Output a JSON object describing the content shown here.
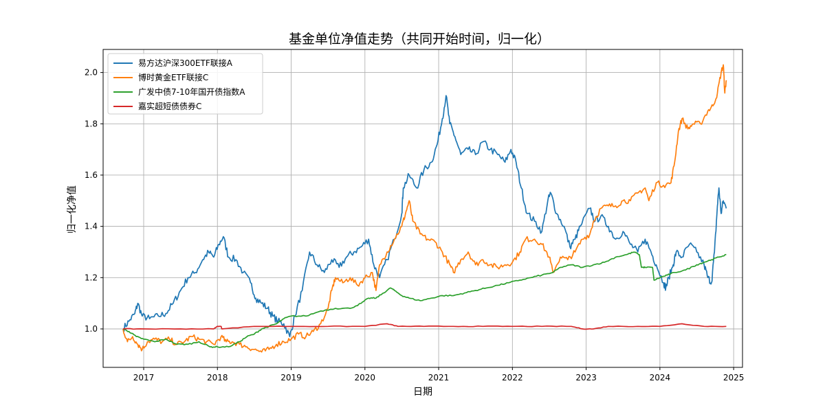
{
  "chart_data": {
    "type": "line",
    "title": "基金单位净值走势（共同开始时间，归一化）",
    "xlabel": "日期",
    "ylabel": "归一化净值",
    "xlim": [
      2016.45,
      2025.12
    ],
    "ylim": [
      0.85,
      2.09
    ],
    "x_ticks": [
      {
        "value": 2017,
        "label": "2017"
      },
      {
        "value": 2018,
        "label": "2018"
      },
      {
        "value": 2019,
        "label": "2019"
      },
      {
        "value": 2020,
        "label": "2020"
      },
      {
        "value": 2021,
        "label": "2021"
      },
      {
        "value": 2022,
        "label": "2022"
      },
      {
        "value": 2023,
        "label": "2023"
      },
      {
        "value": 2024,
        "label": "2024"
      },
      {
        "value": 2025,
        "label": "2025"
      }
    ],
    "y_ticks": [
      {
        "value": 1.0,
        "label": "1.0"
      },
      {
        "value": 1.2,
        "label": "1.2"
      },
      {
        "value": 1.4,
        "label": "1.4"
      },
      {
        "value": 1.6,
        "label": "1.6"
      },
      {
        "value": 1.8,
        "label": "1.8"
      },
      {
        "value": 2.0,
        "label": "2.0"
      }
    ],
    "grid": true,
    "legend_position": "top-left",
    "series": [
      {
        "name": "易方达沪深300ETF联接A",
        "color": "#1f77b4",
        "points": [
          [
            2016.72,
            1.0
          ],
          [
            2016.8,
            1.03
          ],
          [
            2016.88,
            1.06
          ],
          [
            2016.92,
            1.1
          ],
          [
            2016.98,
            1.05
          ],
          [
            2017.08,
            1.04
          ],
          [
            2017.2,
            1.05
          ],
          [
            2017.3,
            1.06
          ],
          [
            2017.4,
            1.1
          ],
          [
            2017.5,
            1.15
          ],
          [
            2017.6,
            1.2
          ],
          [
            2017.7,
            1.22
          ],
          [
            2017.8,
            1.27
          ],
          [
            2017.88,
            1.3
          ],
          [
            2017.95,
            1.28
          ],
          [
            2018.02,
            1.33
          ],
          [
            2018.08,
            1.36
          ],
          [
            2018.15,
            1.28
          ],
          [
            2018.25,
            1.27
          ],
          [
            2018.35,
            1.22
          ],
          [
            2018.45,
            1.18
          ],
          [
            2018.52,
            1.12
          ],
          [
            2018.6,
            1.1
          ],
          [
            2018.68,
            1.08
          ],
          [
            2018.75,
            1.05
          ],
          [
            2018.82,
            1.03
          ],
          [
            2018.9,
            1.02
          ],
          [
            2018.98,
            0.97
          ],
          [
            2019.05,
            1.05
          ],
          [
            2019.15,
            1.15
          ],
          [
            2019.25,
            1.3
          ],
          [
            2019.35,
            1.25
          ],
          [
            2019.45,
            1.22
          ],
          [
            2019.55,
            1.27
          ],
          [
            2019.65,
            1.24
          ],
          [
            2019.75,
            1.28
          ],
          [
            2019.85,
            1.3
          ],
          [
            2019.95,
            1.32
          ],
          [
            2020.05,
            1.35
          ],
          [
            2020.12,
            1.25
          ],
          [
            2020.2,
            1.2
          ],
          [
            2020.3,
            1.27
          ],
          [
            2020.4,
            1.35
          ],
          [
            2020.5,
            1.45
          ],
          [
            2020.52,
            1.55
          ],
          [
            2020.6,
            1.6
          ],
          [
            2020.7,
            1.55
          ],
          [
            2020.8,
            1.62
          ],
          [
            2020.9,
            1.65
          ],
          [
            2020.98,
            1.72
          ],
          [
            2021.05,
            1.82
          ],
          [
            2021.1,
            1.91
          ],
          [
            2021.15,
            1.8
          ],
          [
            2021.22,
            1.75
          ],
          [
            2021.3,
            1.68
          ],
          [
            2021.4,
            1.7
          ],
          [
            2021.5,
            1.68
          ],
          [
            2021.6,
            1.73
          ],
          [
            2021.7,
            1.7
          ],
          [
            2021.8,
            1.68
          ],
          [
            2021.9,
            1.65
          ],
          [
            2021.98,
            1.7
          ],
          [
            2022.05,
            1.65
          ],
          [
            2022.12,
            1.55
          ],
          [
            2022.2,
            1.45
          ],
          [
            2022.3,
            1.42
          ],
          [
            2022.4,
            1.38
          ],
          [
            2022.48,
            1.5
          ],
          [
            2022.52,
            1.53
          ],
          [
            2022.6,
            1.45
          ],
          [
            2022.7,
            1.4
          ],
          [
            2022.78,
            1.32
          ],
          [
            2022.85,
            1.35
          ],
          [
            2022.92,
            1.4
          ],
          [
            2023.05,
            1.47
          ],
          [
            2023.12,
            1.42
          ],
          [
            2023.2,
            1.44
          ],
          [
            2023.3,
            1.4
          ],
          [
            2023.4,
            1.35
          ],
          [
            2023.5,
            1.38
          ],
          [
            2023.6,
            1.33
          ],
          [
            2023.7,
            1.3
          ],
          [
            2023.8,
            1.35
          ],
          [
            2023.88,
            1.3
          ],
          [
            2023.95,
            1.25
          ],
          [
            2024.05,
            1.18
          ],
          [
            2024.08,
            1.16
          ],
          [
            2024.12,
            1.2
          ],
          [
            2024.18,
            1.25
          ],
          [
            2024.22,
            1.3
          ],
          [
            2024.3,
            1.28
          ],
          [
            2024.4,
            1.33
          ],
          [
            2024.5,
            1.3
          ],
          [
            2024.6,
            1.25
          ],
          [
            2024.65,
            1.2
          ],
          [
            2024.7,
            1.18
          ],
          [
            2024.74,
            1.3
          ],
          [
            2024.78,
            1.48
          ],
          [
            2024.8,
            1.55
          ],
          [
            2024.83,
            1.45
          ],
          [
            2024.86,
            1.5
          ],
          [
            2024.9,
            1.47
          ]
        ]
      },
      {
        "name": "博时黄金ETF联接C",
        "color": "#ff7f0e",
        "points": [
          [
            2016.72,
            1.0
          ],
          [
            2016.78,
            0.95
          ],
          [
            2016.85,
            0.97
          ],
          [
            2016.92,
            0.94
          ],
          [
            2016.98,
            0.92
          ],
          [
            2017.05,
            0.95
          ],
          [
            2017.15,
            0.96
          ],
          [
            2017.25,
            0.95
          ],
          [
            2017.35,
            0.96
          ],
          [
            2017.45,
            0.94
          ],
          [
            2017.55,
            0.95
          ],
          [
            2017.65,
            0.97
          ],
          [
            2017.75,
            0.96
          ],
          [
            2017.85,
            0.95
          ],
          [
            2017.95,
            0.94
          ],
          [
            2018.05,
            0.97
          ],
          [
            2018.12,
            0.95
          ],
          [
            2018.2,
            0.95
          ],
          [
            2018.3,
            0.94
          ],
          [
            2018.4,
            0.93
          ],
          [
            2018.5,
            0.92
          ],
          [
            2018.6,
            0.91
          ],
          [
            2018.7,
            0.92
          ],
          [
            2018.8,
            0.94
          ],
          [
            2018.9,
            0.95
          ],
          [
            2019.0,
            0.96
          ],
          [
            2019.1,
            0.98
          ],
          [
            2019.2,
            0.97
          ],
          [
            2019.3,
            0.99
          ],
          [
            2019.4,
            1.02
          ],
          [
            2019.5,
            1.08
          ],
          [
            2019.55,
            1.15
          ],
          [
            2019.6,
            1.2
          ],
          [
            2019.7,
            1.18
          ],
          [
            2019.8,
            1.2
          ],
          [
            2019.9,
            1.17
          ],
          [
            2020.0,
            1.2
          ],
          [
            2020.1,
            1.22
          ],
          [
            2020.15,
            1.15
          ],
          [
            2020.2,
            1.25
          ],
          [
            2020.3,
            1.3
          ],
          [
            2020.4,
            1.35
          ],
          [
            2020.5,
            1.4
          ],
          [
            2020.55,
            1.45
          ],
          [
            2020.6,
            1.5
          ],
          [
            2020.65,
            1.42
          ],
          [
            2020.75,
            1.37
          ],
          [
            2020.85,
            1.35
          ],
          [
            2020.95,
            1.34
          ],
          [
            2021.05,
            1.3
          ],
          [
            2021.15,
            1.25
          ],
          [
            2021.2,
            1.22
          ],
          [
            2021.3,
            1.27
          ],
          [
            2021.4,
            1.3
          ],
          [
            2021.5,
            1.25
          ],
          [
            2021.6,
            1.27
          ],
          [
            2021.7,
            1.25
          ],
          [
            2021.8,
            1.24
          ],
          [
            2021.9,
            1.25
          ],
          [
            2022.0,
            1.26
          ],
          [
            2022.1,
            1.3
          ],
          [
            2022.18,
            1.35
          ],
          [
            2022.3,
            1.35
          ],
          [
            2022.4,
            1.33
          ],
          [
            2022.5,
            1.28
          ],
          [
            2022.55,
            1.22
          ],
          [
            2022.65,
            1.28
          ],
          [
            2022.75,
            1.27
          ],
          [
            2022.85,
            1.3
          ],
          [
            2022.95,
            1.35
          ],
          [
            2023.05,
            1.37
          ],
          [
            2023.1,
            1.42
          ],
          [
            2023.2,
            1.47
          ],
          [
            2023.3,
            1.48
          ],
          [
            2023.4,
            1.48
          ],
          [
            2023.5,
            1.5
          ],
          [
            2023.6,
            1.5
          ],
          [
            2023.7,
            1.53
          ],
          [
            2023.8,
            1.55
          ],
          [
            2023.85,
            1.5
          ],
          [
            2023.95,
            1.57
          ],
          [
            2024.05,
            1.56
          ],
          [
            2024.15,
            1.57
          ],
          [
            2024.2,
            1.65
          ],
          [
            2024.25,
            1.77
          ],
          [
            2024.3,
            1.82
          ],
          [
            2024.38,
            1.78
          ],
          [
            2024.45,
            1.8
          ],
          [
            2024.55,
            1.8
          ],
          [
            2024.65,
            1.85
          ],
          [
            2024.72,
            1.87
          ],
          [
            2024.78,
            1.92
          ],
          [
            2024.83,
            2.0
          ],
          [
            2024.86,
            2.03
          ],
          [
            2024.88,
            1.92
          ],
          [
            2024.9,
            1.97
          ]
        ]
      },
      {
        "name": "广发中债7-10年国开债指数A",
        "color": "#2ca02c",
        "points": [
          [
            2016.72,
            1.0
          ],
          [
            2016.8,
            0.99
          ],
          [
            2016.9,
            0.97
          ],
          [
            2017.0,
            0.96
          ],
          [
            2017.15,
            0.95
          ],
          [
            2017.3,
            0.96
          ],
          [
            2017.45,
            0.94
          ],
          [
            2017.6,
            0.94
          ],
          [
            2017.75,
            0.95
          ],
          [
            2017.9,
            0.93
          ],
          [
            2018.0,
            0.93
          ],
          [
            2018.15,
            0.93
          ],
          [
            2018.3,
            0.95
          ],
          [
            2018.4,
            0.97
          ],
          [
            2018.5,
            0.98
          ],
          [
            2018.6,
            1.0
          ],
          [
            2018.7,
            1.01
          ],
          [
            2018.8,
            1.02
          ],
          [
            2018.9,
            1.04
          ],
          [
            2019.0,
            1.05
          ],
          [
            2019.2,
            1.05
          ],
          [
            2019.4,
            1.07
          ],
          [
            2019.6,
            1.08
          ],
          [
            2019.8,
            1.08
          ],
          [
            2019.95,
            1.1
          ],
          [
            2020.05,
            1.12
          ],
          [
            2020.15,
            1.12
          ],
          [
            2020.25,
            1.14
          ],
          [
            2020.35,
            1.16
          ],
          [
            2020.4,
            1.15
          ],
          [
            2020.5,
            1.13
          ],
          [
            2020.6,
            1.12
          ],
          [
            2020.75,
            1.11
          ],
          [
            2020.9,
            1.12
          ],
          [
            2021.05,
            1.13
          ],
          [
            2021.2,
            1.13
          ],
          [
            2021.35,
            1.14
          ],
          [
            2021.5,
            1.15
          ],
          [
            2021.65,
            1.16
          ],
          [
            2021.8,
            1.17
          ],
          [
            2021.95,
            1.18
          ],
          [
            2022.1,
            1.19
          ],
          [
            2022.25,
            1.2
          ],
          [
            2022.4,
            1.21
          ],
          [
            2022.55,
            1.22
          ],
          [
            2022.65,
            1.24
          ],
          [
            2022.8,
            1.25
          ],
          [
            2022.95,
            1.24
          ],
          [
            2023.1,
            1.25
          ],
          [
            2023.25,
            1.26
          ],
          [
            2023.4,
            1.28
          ],
          [
            2023.55,
            1.29
          ],
          [
            2023.65,
            1.3
          ],
          [
            2023.72,
            1.29
          ],
          [
            2023.75,
            1.24
          ],
          [
            2023.8,
            1.24
          ],
          [
            2023.9,
            1.24
          ],
          [
            2023.92,
            1.19
          ],
          [
            2024.0,
            1.2
          ],
          [
            2024.1,
            1.21
          ],
          [
            2024.2,
            1.22
          ],
          [
            2024.35,
            1.23
          ],
          [
            2024.5,
            1.25
          ],
          [
            2024.6,
            1.26
          ],
          [
            2024.7,
            1.27
          ],
          [
            2024.8,
            1.28
          ],
          [
            2024.9,
            1.29
          ]
        ]
      },
      {
        "name": "嘉实超短债债券C",
        "color": "#d62728",
        "points": [
          [
            2016.72,
            1.0
          ],
          [
            2017.0,
            1.0
          ],
          [
            2017.5,
            1.0
          ],
          [
            2017.95,
            1.0
          ],
          [
            2018.0,
            1.01
          ],
          [
            2018.05,
            1.01
          ],
          [
            2018.06,
            1.0
          ],
          [
            2018.5,
            1.01
          ],
          [
            2019.0,
            1.01
          ],
          [
            2019.5,
            1.01
          ],
          [
            2020.0,
            1.01
          ],
          [
            2020.3,
            1.02
          ],
          [
            2020.45,
            1.01
          ],
          [
            2020.8,
            1.01
          ],
          [
            2021.2,
            1.01
          ],
          [
            2021.6,
            1.01
          ],
          [
            2022.0,
            1.01
          ],
          [
            2022.4,
            1.01
          ],
          [
            2022.8,
            1.01
          ],
          [
            2022.95,
            1.0
          ],
          [
            2023.1,
            1.0
          ],
          [
            2023.3,
            1.01
          ],
          [
            2023.7,
            1.01
          ],
          [
            2024.0,
            1.01
          ],
          [
            2024.3,
            1.02
          ],
          [
            2024.6,
            1.01
          ],
          [
            2024.9,
            1.01
          ]
        ]
      }
    ]
  }
}
